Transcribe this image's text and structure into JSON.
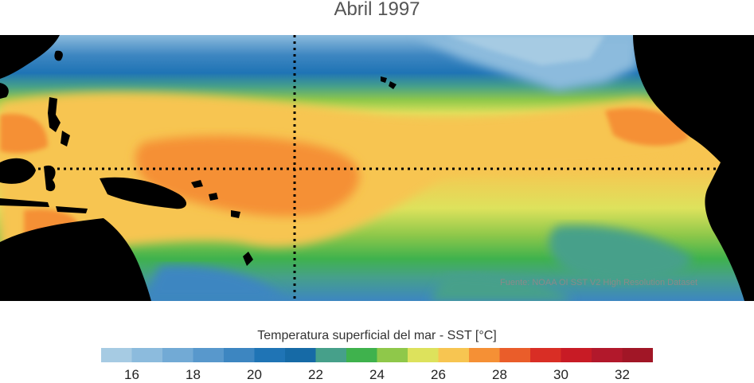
{
  "title": "Abril 1997",
  "source_note": "Fuente: NOAA OI SST V2 High Resolution Dataset",
  "colorbar": {
    "label": "Temperatura superficial del mar - SST  [°C]",
    "min": 15,
    "max": 33,
    "step": 1,
    "tick_labels": [
      "16",
      "18",
      "20",
      "22",
      "24",
      "26",
      "28",
      "30",
      "32"
    ],
    "colors": [
      "#a6cbe3",
      "#8cbbdd",
      "#72aad5",
      "#5898cc",
      "#3d86c1",
      "#1f74b5",
      "#166aa6",
      "#46a08a",
      "#3fb24d",
      "#8fc84a",
      "#dde25c",
      "#f7c551",
      "#f59035",
      "#ea5d2a",
      "#d92e25",
      "#c81b25",
      "#b2182b",
      "#a11626"
    ]
  },
  "map": {
    "land_color": "#000000",
    "reference_lines": [
      "equator",
      "dateline"
    ]
  }
}
